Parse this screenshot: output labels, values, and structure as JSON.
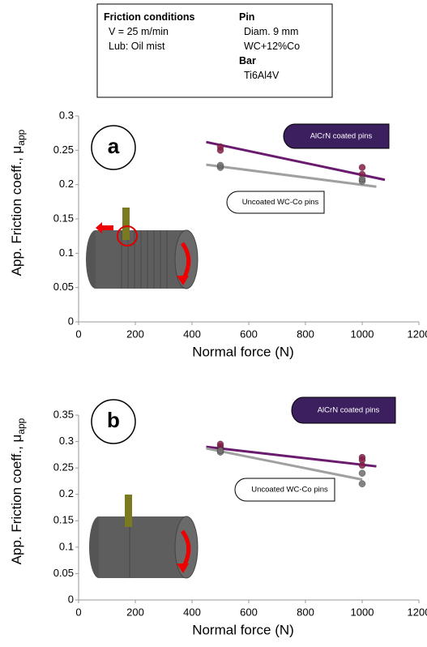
{
  "conditions": {
    "title": "Friction conditions",
    "lines": [
      "V = 25 m/min",
      "Lub: Oil mist"
    ],
    "pin_title": "Pin",
    "pin_lines": [
      "Diam. 9 mm",
      "WC+12%Co"
    ],
    "bar_title": "Bar",
    "bar_lines": [
      "Ti6Al4V"
    ]
  },
  "chart_data": [
    {
      "type": "scatter",
      "panel": "a",
      "x_label": "Normal force (N)",
      "y_label": "App. Friction coeff., μ",
      "y_label_sub": "app",
      "xlim": [
        0,
        1200
      ],
      "xticks": [
        0,
        200,
        400,
        600,
        800,
        1000,
        1200
      ],
      "ylim": [
        0,
        0.3
      ],
      "yticks": [
        0,
        0.05,
        0.1,
        0.15,
        0.2,
        0.25,
        0.3
      ],
      "series": [
        {
          "name": "AlCrN coated pins",
          "color": "#8b1a4a",
          "line_color": "#6a1b6e",
          "x": [
            500,
            500,
            1000,
            1000
          ],
          "values": [
            0.25,
            0.255,
            0.225,
            0.215
          ],
          "trend_x": [
            450,
            1080
          ],
          "trend_y": [
            0.262,
            0.207
          ]
        },
        {
          "name": "Uncoated WC-Co pins",
          "color": "#6e6e6e",
          "line_color": "#a0a0a0",
          "x": [
            500,
            500,
            1000,
            1000
          ],
          "values": [
            0.225,
            0.228,
            0.205,
            0.208
          ],
          "trend_x": [
            450,
            1050
          ],
          "trend_y": [
            0.229,
            0.197
          ]
        }
      ]
    },
    {
      "type": "scatter",
      "panel": "b",
      "x_label": "Normal force (N)",
      "y_label": "App. Friction coeff., μ",
      "y_label_sub": "app",
      "xlim": [
        0,
        1200
      ],
      "xticks": [
        0,
        200,
        400,
        600,
        800,
        1000,
        1200
      ],
      "ylim": [
        0,
        0.35
      ],
      "yticks": [
        0,
        0.05,
        0.1,
        0.15,
        0.2,
        0.25,
        0.3,
        0.35
      ],
      "series": [
        {
          "name": "AlCrN coated pins",
          "color": "#8b1a4a",
          "line_color": "#6a1b6e",
          "x": [
            500,
            500,
            500,
            1000,
            1000,
            1000
          ],
          "values": [
            0.295,
            0.29,
            0.285,
            0.27,
            0.265,
            0.255
          ],
          "trend_x": [
            450,
            1050
          ],
          "trend_y": [
            0.29,
            0.253
          ]
        },
        {
          "name": "Uncoated WC-Co pins",
          "color": "#6e6e6e",
          "line_color": "#a0a0a0",
          "x": [
            500,
            500,
            1000,
            1000
          ],
          "values": [
            0.28,
            0.283,
            0.24,
            0.22
          ],
          "trend_x": [
            450,
            1000
          ],
          "trend_y": [
            0.287,
            0.228
          ]
        }
      ]
    }
  ]
}
